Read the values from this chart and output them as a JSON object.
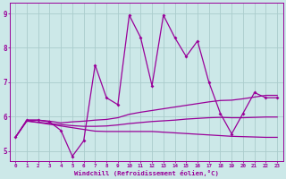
{
  "xlabel": "Windchill (Refroidissement éolien,°C)",
  "ylabel": "",
  "xlim": [
    -0.5,
    23.5
  ],
  "ylim": [
    4.7,
    9.3
  ],
  "xticks": [
    0,
    1,
    2,
    3,
    4,
    5,
    6,
    7,
    8,
    9,
    10,
    11,
    12,
    13,
    14,
    15,
    16,
    17,
    18,
    19,
    20,
    21,
    22,
    23
  ],
  "yticks": [
    5,
    6,
    7,
    8,
    9
  ],
  "bg_color": "#cce8e8",
  "line_color": "#990099",
  "grid_color": "#aacccc",
  "line1_x": [
    0,
    1,
    2,
    3,
    4,
    5,
    6,
    7,
    8,
    9,
    10,
    11,
    12,
    13,
    14,
    15,
    16,
    17,
    18,
    19,
    20,
    21,
    22,
    23
  ],
  "line1_y": [
    5.4,
    5.9,
    5.9,
    5.85,
    5.6,
    4.85,
    5.3,
    7.5,
    6.55,
    6.35,
    8.95,
    8.3,
    6.9,
    8.95,
    8.3,
    7.75,
    8.2,
    7.0,
    6.1,
    5.5,
    6.1,
    6.7,
    6.55,
    6.55
  ],
  "line2_x": [
    0,
    1,
    2,
    3,
    4,
    5,
    6,
    7,
    8,
    9,
    10,
    11,
    12,
    13,
    14,
    15,
    16,
    17,
    18,
    19,
    20,
    21,
    22,
    23
  ],
  "line2_y": [
    5.4,
    5.9,
    5.9,
    5.87,
    5.82,
    5.85,
    5.87,
    5.9,
    5.92,
    5.97,
    6.07,
    6.13,
    6.18,
    6.23,
    6.28,
    6.33,
    6.38,
    6.43,
    6.47,
    6.48,
    6.52,
    6.57,
    6.62,
    6.62
  ],
  "line3_x": [
    0,
    1,
    2,
    3,
    4,
    5,
    6,
    7,
    8,
    9,
    10,
    11,
    12,
    13,
    14,
    15,
    16,
    17,
    18,
    19,
    20,
    21,
    22,
    23
  ],
  "line3_y": [
    5.4,
    5.87,
    5.83,
    5.78,
    5.73,
    5.68,
    5.63,
    5.58,
    5.57,
    5.57,
    5.57,
    5.57,
    5.57,
    5.55,
    5.53,
    5.51,
    5.49,
    5.47,
    5.45,
    5.43,
    5.42,
    5.41,
    5.4,
    5.4
  ],
  "line4_x": [
    0,
    1,
    2,
    3,
    4,
    5,
    6,
    7,
    8,
    9,
    10,
    11,
    12,
    13,
    14,
    15,
    16,
    17,
    18,
    19,
    20,
    21,
    22,
    23
  ],
  "line4_y": [
    5.4,
    5.88,
    5.84,
    5.8,
    5.77,
    5.74,
    5.72,
    5.72,
    5.73,
    5.76,
    5.8,
    5.83,
    5.86,
    5.88,
    5.9,
    5.93,
    5.95,
    5.97,
    5.98,
    5.97,
    5.97,
    5.98,
    5.99,
    5.99
  ]
}
